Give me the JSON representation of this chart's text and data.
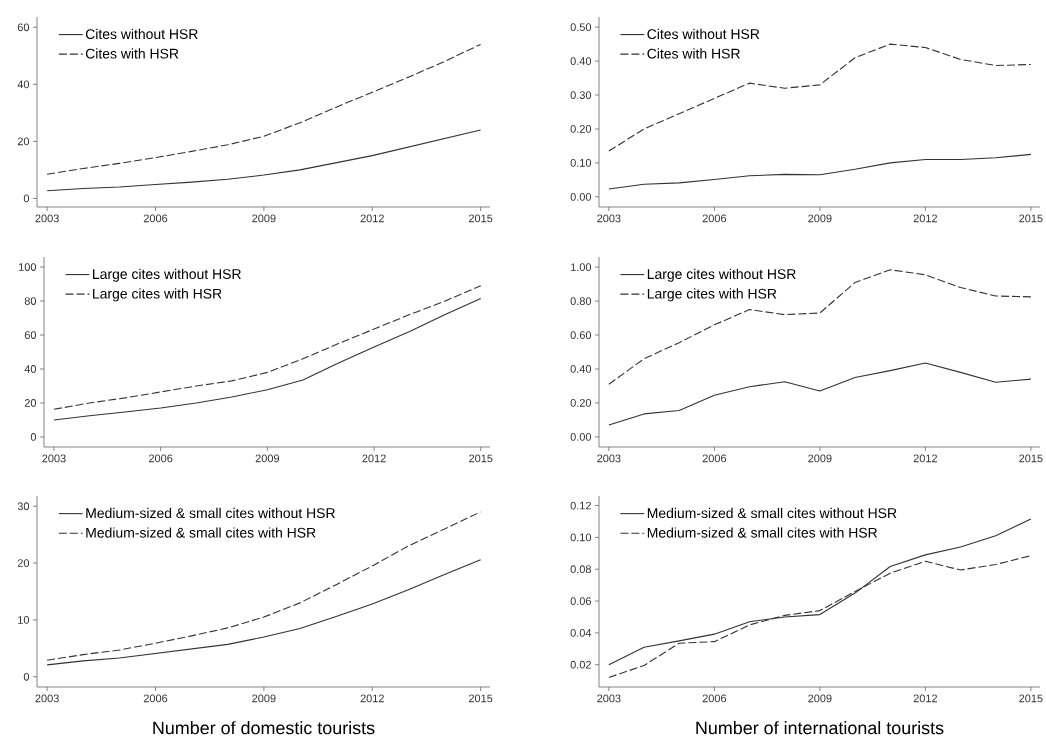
{
  "chart_data": [
    {
      "type": "line",
      "x": [
        2003,
        2004,
        2005,
        2006,
        2007,
        2008,
        2009,
        2010,
        2011,
        2012,
        2013,
        2014,
        2015
      ],
      "xlim": [
        2002.72,
        2015.26
      ],
      "ylim": [
        -3,
        63.6
      ],
      "xticks": [
        2003,
        2006,
        2009,
        2012,
        2015
      ],
      "yticks": [
        0,
        20,
        40,
        60
      ],
      "legend": "top left",
      "series": [
        {
          "name": "Cites without HSR",
          "color": "#333333",
          "line_style": "solid",
          "values": [
            2.7,
            3.5,
            4.0,
            4.9,
            5.7,
            6.7,
            8.2,
            10.0,
            12.5,
            15.0,
            18.0,
            21.0,
            24.0
          ]
        },
        {
          "name": "Cites with HSR",
          "color": "#333333",
          "line_style": "dashed",
          "values": [
            8.5,
            10.5,
            12.3,
            14.3,
            16.5,
            18.8,
            21.8,
            26.5,
            32,
            37.2,
            42.5,
            48,
            54
          ]
        }
      ]
    },
    {
      "type": "line",
      "x": [
        2003,
        2004,
        2005,
        2006,
        2007,
        2008,
        2009,
        2010,
        2011,
        2012,
        2013,
        2014,
        2015
      ],
      "xlim": [
        2002.72,
        2015.26
      ],
      "ylim": [
        -0.03,
        0.53
      ],
      "xticks": [
        2003,
        2006,
        2009,
        2012,
        2015
      ],
      "yticks": [
        {
          "value": 0,
          "label": "0.00"
        },
        {
          "value": 0.1,
          "label": "0.10"
        },
        {
          "value": 0.2,
          "label": "0.20"
        },
        {
          "value": 0.3,
          "label": "0.30"
        },
        {
          "value": 0.4,
          "label": "0.40"
        },
        {
          "value": 0.5,
          "label": "0.50"
        }
      ],
      "legend": "top left",
      "series": [
        {
          "name": "Cites without HSR",
          "color": "#333333",
          "line_style": "solid",
          "values": [
            0.023,
            0.037,
            0.041,
            0.051,
            0.062,
            0.066,
            0.065,
            0.081,
            0.1,
            0.11,
            0.11,
            0.115,
            0.125
          ]
        },
        {
          "name": "Cites with HSR",
          "color": "#333333",
          "line_style": "dashed",
          "values": [
            0.135,
            0.2,
            0.245,
            0.29,
            0.335,
            0.32,
            0.33,
            0.41,
            0.45,
            0.44,
            0.405,
            0.387,
            0.39
          ]
        }
      ]
    },
    {
      "type": "line",
      "x": [
        2003,
        2004,
        2005,
        2006,
        2007,
        2008,
        2009,
        2010,
        2011,
        2012,
        2013,
        2014,
        2015
      ],
      "xlim": [
        2002.72,
        2015.26
      ],
      "ylim": [
        -5.9,
        105.9
      ],
      "xticks": [
        2003,
        2006,
        2009,
        2012,
        2015
      ],
      "yticks": [
        0,
        20,
        40,
        60,
        80,
        100
      ],
      "legend": "top left",
      "series": [
        {
          "name": "Large cites without HSR",
          "color": "#333333",
          "line_style": "solid",
          "values": [
            10,
            12.5,
            14.7,
            17,
            20,
            23.5,
            27.8,
            33.5,
            43.5,
            53,
            62,
            72,
            81.5
          ]
        },
        {
          "name": "Large cites with HSR",
          "color": "#333333",
          "line_style": "dashed",
          "values": [
            16.3,
            20,
            23,
            26.5,
            30,
            33,
            38,
            46,
            55,
            63.5,
            72,
            80,
            89
          ]
        }
      ]
    },
    {
      "type": "line",
      "x": [
        2003,
        2004,
        2005,
        2006,
        2007,
        2008,
        2009,
        2010,
        2011,
        2012,
        2013,
        2014,
        2015
      ],
      "xlim": [
        2002.72,
        2015.26
      ],
      "ylim": [
        -0.06,
        1.06
      ],
      "xticks": [
        2003,
        2006,
        2009,
        2012,
        2015
      ],
      "yticks": [
        {
          "value": 0,
          "label": "0.00"
        },
        {
          "value": 0.2,
          "label": "0.20"
        },
        {
          "value": 0.4,
          "label": "0.40"
        },
        {
          "value": 0.6,
          "label": "0.60"
        },
        {
          "value": 0.8,
          "label": "0.80"
        },
        {
          "value": 1,
          "label": "1.00"
        }
      ],
      "legend": "top left",
      "series": [
        {
          "name": "Large cites without HSR",
          "color": "#333333",
          "line_style": "solid",
          "values": [
            0.07,
            0.135,
            0.155,
            0.245,
            0.295,
            0.325,
            0.27,
            0.35,
            0.39,
            0.435,
            0.38,
            0.322,
            0.34
          ]
        },
        {
          "name": "Large cites with HSR",
          "color": "#333333",
          "line_style": "dashed",
          "values": [
            0.31,
            0.46,
            0.555,
            0.66,
            0.75,
            0.72,
            0.73,
            0.91,
            0.985,
            0.955,
            0.88,
            0.83,
            0.825
          ]
        }
      ]
    },
    {
      "type": "line",
      "xlabel": "Number of domestic tourists",
      "x": [
        2003,
        2004,
        2005,
        2006,
        2007,
        2008,
        2009,
        2010,
        2011,
        2012,
        2013,
        2014,
        2015
      ],
      "xlim": [
        2002.72,
        2015.26
      ],
      "ylim": [
        -1.8,
        31.8
      ],
      "xticks": [
        2003,
        2006,
        2009,
        2012,
        2015
      ],
      "yticks": [
        0,
        10,
        20,
        30
      ],
      "legend": "top left",
      "series": [
        {
          "name": "Medium-sized & small cites without HSR",
          "color": "#333333",
          "line_style": "solid",
          "values": [
            2.1,
            2.8,
            3.3,
            4.1,
            4.9,
            5.7,
            7.0,
            8.5,
            10.6,
            12.8,
            15.3,
            18.0,
            20.6
          ]
        },
        {
          "name": "Medium-sized & small cites with HSR",
          "color": "#333333",
          "line_style": "dashed",
          "values": [
            2.9,
            3.9,
            4.7,
            5.9,
            7.2,
            8.6,
            10.5,
            13.0,
            16.2,
            19.5,
            23,
            26,
            29
          ]
        }
      ]
    },
    {
      "type": "line",
      "xlabel": "Number of international tourists",
      "x": [
        2003,
        2004,
        2005,
        2006,
        2007,
        2008,
        2009,
        2010,
        2011,
        2012,
        2013,
        2014,
        2015
      ],
      "xlim": [
        2002.72,
        2015.26
      ],
      "ylim": [
        0.006,
        0.126
      ],
      "xticks": [
        2003,
        2006,
        2009,
        2012,
        2015
      ],
      "yticks": [
        {
          "value": 0.02,
          "label": "0.02"
        },
        {
          "value": 0.04,
          "label": "0.04"
        },
        {
          "value": 0.06,
          "label": "0.06"
        },
        {
          "value": 0.08,
          "label": "0.08"
        },
        {
          "value": 0.1,
          "label": "0.10"
        },
        {
          "value": 0.12,
          "label": "0.12"
        }
      ],
      "legend": "top left",
      "series": [
        {
          "name": "Medium-sized & small cites without HSR",
          "color": "#333333",
          "line_style": "solid",
          "values": [
            0.02,
            0.031,
            0.035,
            0.0392,
            0.047,
            0.05,
            0.0515,
            0.065,
            0.0817,
            0.089,
            0.094,
            0.101,
            0.1116
          ]
        },
        {
          "name": "Medium-sized & small cites with HSR",
          "color": "#333333",
          "line_style": "dashed",
          "values": [
            0.012,
            0.0195,
            0.0335,
            0.0345,
            0.045,
            0.051,
            0.054,
            0.066,
            0.0775,
            0.085,
            0.0795,
            0.083,
            0.0885
          ]
        }
      ]
    }
  ]
}
